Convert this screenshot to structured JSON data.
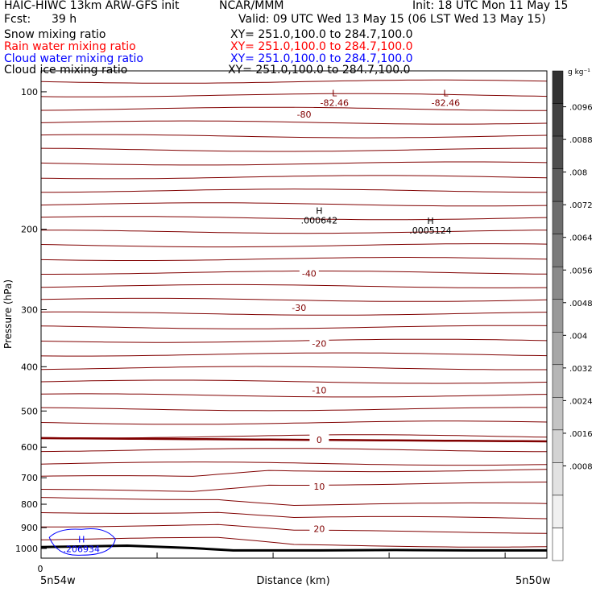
{
  "header": {
    "model": "HAIC-HIWC 13km ARW-GFS init",
    "org": "NCAR/MMM",
    "init": "Init: 18 UTC Mon 11 May 15",
    "fcst_label": "Fcst:",
    "fcst_value": "39 h",
    "valid": "Valid: 09 UTC Wed 13 May 15 (06 LST Wed 13 May 15)",
    "fields": [
      {
        "name": "Snow mixing ratio",
        "xy": "XY= 251.0,100.0 to 284.7,100.0",
        "color": "#000000"
      },
      {
        "name": "Rain water mixing ratio",
        "xy": "XY= 251.0,100.0 to 284.7,100.0",
        "color": "#ff0000"
      },
      {
        "name": "Cloud water mixing ratio",
        "xy": "XY= 251.0,100.0 to 284.7,100.0",
        "color": "#0000ff"
      },
      {
        "name": "Cloud ice mixing ratio",
        "xy": "XY= 251.0,100.0 to 284.7,100.0",
        "color": "#000000"
      }
    ]
  },
  "chart_data": {
    "type": "contour-cross-section",
    "ylabel": "Pressure (hPa)",
    "xlabel": "Distance (km)",
    "y_scale": "log",
    "ylim": [
      1050,
      90
    ],
    "y_ticks": [
      100,
      200,
      300,
      400,
      500,
      600,
      700,
      800,
      900,
      1000
    ],
    "x_tick_label": "0",
    "x_left_label": "5n54w",
    "x_right_label": "5n50w",
    "contour_color": "#800000",
    "contour_labels": [
      {
        "text": "-80",
        "p": 112
      },
      {
        "text": "-40",
        "p": 250
      },
      {
        "text": "-30",
        "p": 297
      },
      {
        "text": "-20",
        "p": 356
      },
      {
        "text": "-10",
        "p": 450
      },
      {
        "text": "0",
        "p": 578
      },
      {
        "text": "10",
        "p": 731
      },
      {
        "text": "20",
        "p": 905
      }
    ],
    "extrema": [
      {
        "mark": "L",
        "value": "-82.46",
        "color": "#800000",
        "x": 0.58,
        "p": 104
      },
      {
        "mark": "L",
        "value": "-82.46",
        "color": "#800000",
        "x": 0.8,
        "p": 104
      },
      {
        "mark": "H",
        "value": ".000642",
        "color": "#000000",
        "x": 0.55,
        "p": 188
      },
      {
        "mark": "H",
        "value": ".0005124",
        "color": "#000000",
        "x": 0.77,
        "p": 198
      },
      {
        "mark": "H",
        "value": ".206934",
        "color": "#0000ff",
        "x": 0.08,
        "p": 985
      }
    ],
    "colorbar": {
      "unit": "g kg⁻¹",
      "labels": [
        ".0096",
        ".0088",
        ".008",
        ".0072",
        ".0064",
        ".0056",
        ".0048",
        ".004",
        ".0032",
        ".0024",
        ".0016",
        ".0008"
      ]
    }
  }
}
